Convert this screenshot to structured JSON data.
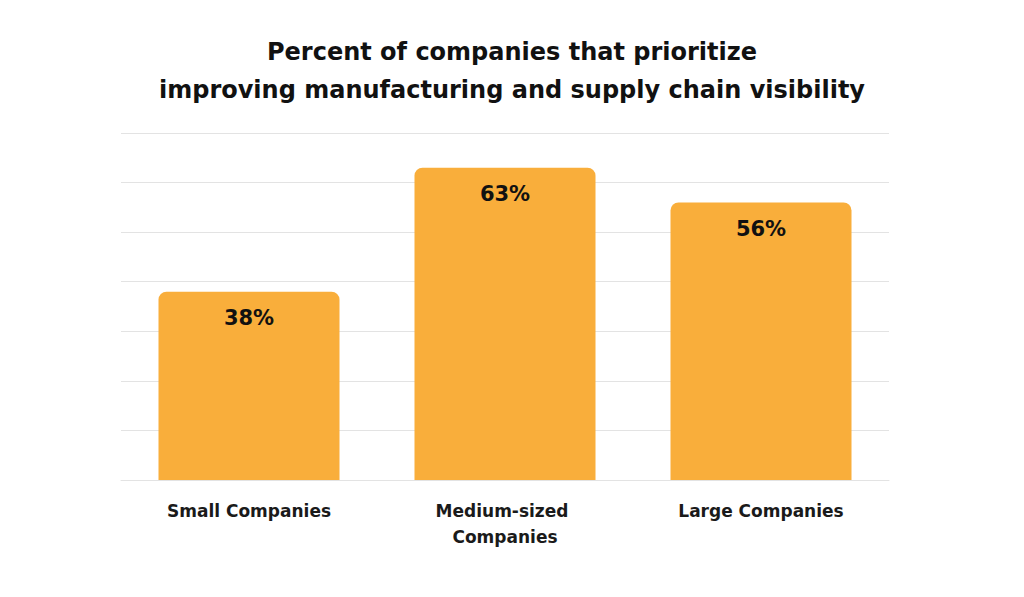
{
  "chart_data": {
    "type": "bar",
    "title": "Percent of companies that prioritize\nimproving manufacturing and supply chain visibility",
    "categories": [
      "Small Companies",
      "Medium-sized Companies",
      "Large Companies"
    ],
    "values": [
      38,
      63,
      56
    ],
    "value_labels": [
      "38%",
      "63%",
      "56%"
    ],
    "color": "#f9ae3b",
    "ylim": [
      0,
      70
    ],
    "yticks": [
      0,
      10,
      20,
      30,
      40,
      50,
      60,
      70
    ],
    "grid": true,
    "data_labels": true,
    "tick_labels": "x"
  }
}
